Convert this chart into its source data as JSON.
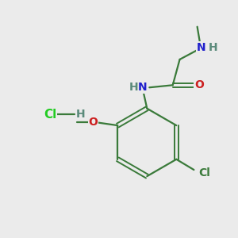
{
  "background_color": "#ebebeb",
  "bond_color": "#3a7a3a",
  "atom_colors": {
    "N": "#2020cc",
    "O": "#cc2020",
    "Cl_green": "#22cc22",
    "Cl_dark": "#3a7a3a",
    "H": "#5a8a7a"
  },
  "font_size": 10,
  "title": ""
}
